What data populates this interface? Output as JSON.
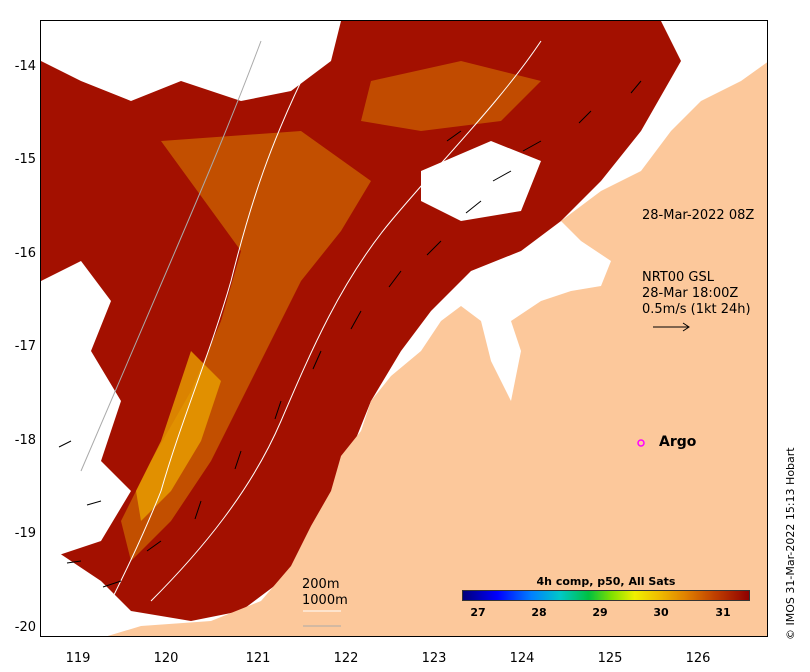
{
  "map": {
    "y_ticks": [
      "-14",
      "-15",
      "-16",
      "-17",
      "-18",
      "-19",
      "-20"
    ],
    "x_ticks": [
      "119",
      "120",
      "121",
      "122",
      "123",
      "124",
      "125",
      "126"
    ],
    "lat_range": [
      -20.05,
      -13.5
    ],
    "lon_range": [
      118.65,
      126.75
    ]
  },
  "annotations": {
    "timestamp": "28-Mar-2022 08Z",
    "current_title": "NRT00 GSL",
    "current_time": "28-Mar 18:00Z",
    "current_scale": "0.5m/s (1kt 24h)",
    "argo_label": "Argo",
    "isobath_200": "200m",
    "isobath_1000": "1000m"
  },
  "colorbar": {
    "title": "4h comp, p50, All Sats",
    "ticks": [
      "27",
      "28",
      "29",
      "30",
      "31"
    ]
  },
  "credit": "© IMOS 31-Mar-2022 15:13 Hobart",
  "colors": {
    "land": "#fcc89b",
    "sst_warm": "#a31000",
    "sst_mid": "#c85a00",
    "sst_cool": "#e8a000"
  }
}
